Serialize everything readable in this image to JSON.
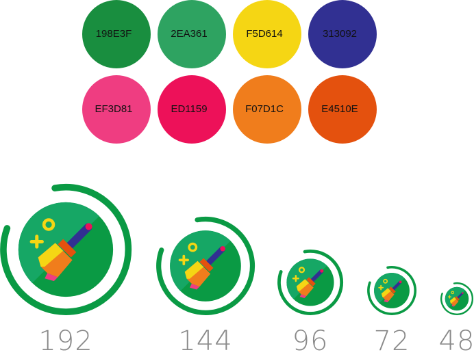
{
  "palette": [
    {
      "hex": "198E3F"
    },
    {
      "hex": "2EA361"
    },
    {
      "hex": "F5D614"
    },
    {
      "hex": "313092"
    },
    {
      "hex": "EF3D81"
    },
    {
      "hex": "ED1159"
    },
    {
      "hex": "F07D1C"
    },
    {
      "hex": "E4510E"
    }
  ],
  "icons": [
    {
      "size": 192
    },
    {
      "size": 144
    },
    {
      "size": 96
    },
    {
      "size": 72
    },
    {
      "size": 48
    }
  ]
}
